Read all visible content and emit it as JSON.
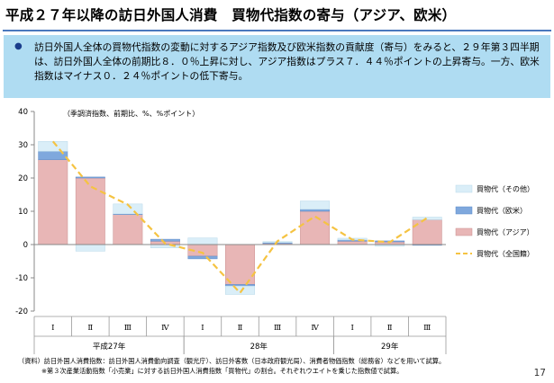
{
  "header": {
    "title": "平成２７年以降の訪日外国人消費　買物代指数の寄与（アジア、欧米）"
  },
  "summary": {
    "text": "訪日外国人全体の買物代指数の変動に対するアジア指数及び欧米指数の貢献度（寄与）をみると、２９年第３四半期は、訪日外国人全体の前期比８．０％上昇に対し、アジア指数はプラス７．４４％ポイントの上昇寄与。一方、欧米指数はマイナス０．２４％ポイントの低下寄与。"
  },
  "chart_note": "（季調済指数、前期比、%、%ポイント）",
  "chart_data": {
    "type": "bar",
    "stacked": true,
    "ylim": [
      -20,
      40
    ],
    "yticks": [
      -20,
      -10,
      0,
      10,
      20,
      30,
      40
    ],
    "categories": [
      "Ⅰ",
      "Ⅱ",
      "Ⅲ",
      "Ⅳ",
      "Ⅰ",
      "Ⅱ",
      "Ⅲ",
      "Ⅳ",
      "Ⅰ",
      "Ⅱ",
      "Ⅲ"
    ],
    "year_groups": [
      {
        "label": "平成27年",
        "count": 4
      },
      {
        "label": "28年",
        "count": 4
      },
      {
        "label": "29年",
        "count": 3
      }
    ],
    "series": [
      {
        "name": "買物代（アジア）",
        "kind": "bar",
        "color": "#e8b6b6",
        "edge": "#c98f8f",
        "values": [
          25.5,
          20.0,
          9.0,
          1.0,
          -3.5,
          -12.0,
          0.3,
          10.0,
          1.0,
          0.8,
          7.44
        ]
      },
      {
        "name": "買物代（欧米）",
        "kind": "bar",
        "color": "#7fa8dd",
        "edge": "#5f8cc9",
        "values": [
          2.5,
          0.3,
          0.2,
          0.6,
          -0.8,
          -0.5,
          0.3,
          0.6,
          0.4,
          0.3,
          -0.24
        ]
      },
      {
        "name": "買物代（その他）",
        "kind": "bar",
        "color": "#daeef8",
        "edge": "#b9d9ea",
        "values": [
          3.0,
          -2.0,
          3.0,
          -1.0,
          2.0,
          -2.5,
          0.3,
          2.5,
          0.5,
          -0.5,
          0.8
        ]
      },
      {
        "name": "買物代（全国籍）",
        "kind": "line",
        "color": "#f5c342",
        "values": [
          31.0,
          17.5,
          12.0,
          0.3,
          -2.5,
          -14.5,
          1.0,
          8.5,
          1.5,
          0.7,
          8.0
        ]
      }
    ],
    "legend_order": [
      "買物代（その他）",
      "買物代（欧米）",
      "買物代（アジア）",
      "買物代（全国籍）"
    ],
    "legend_position": "right",
    "grid": false
  },
  "footnotes": {
    "line1": "（資料）訪日外国人消費指数：訪日外国人消費動向調査（観光庁）、訪日外客数（日本政府観光局）、消費者物価指数（総務省）などを用いて試算。",
    "line2": "※第３次産業活動指数「小売業」に対する訪日外国人消費指数「買物代」の割合。それぞれウエイトを乗じた指数値で試算。"
  },
  "page_number": "17"
}
